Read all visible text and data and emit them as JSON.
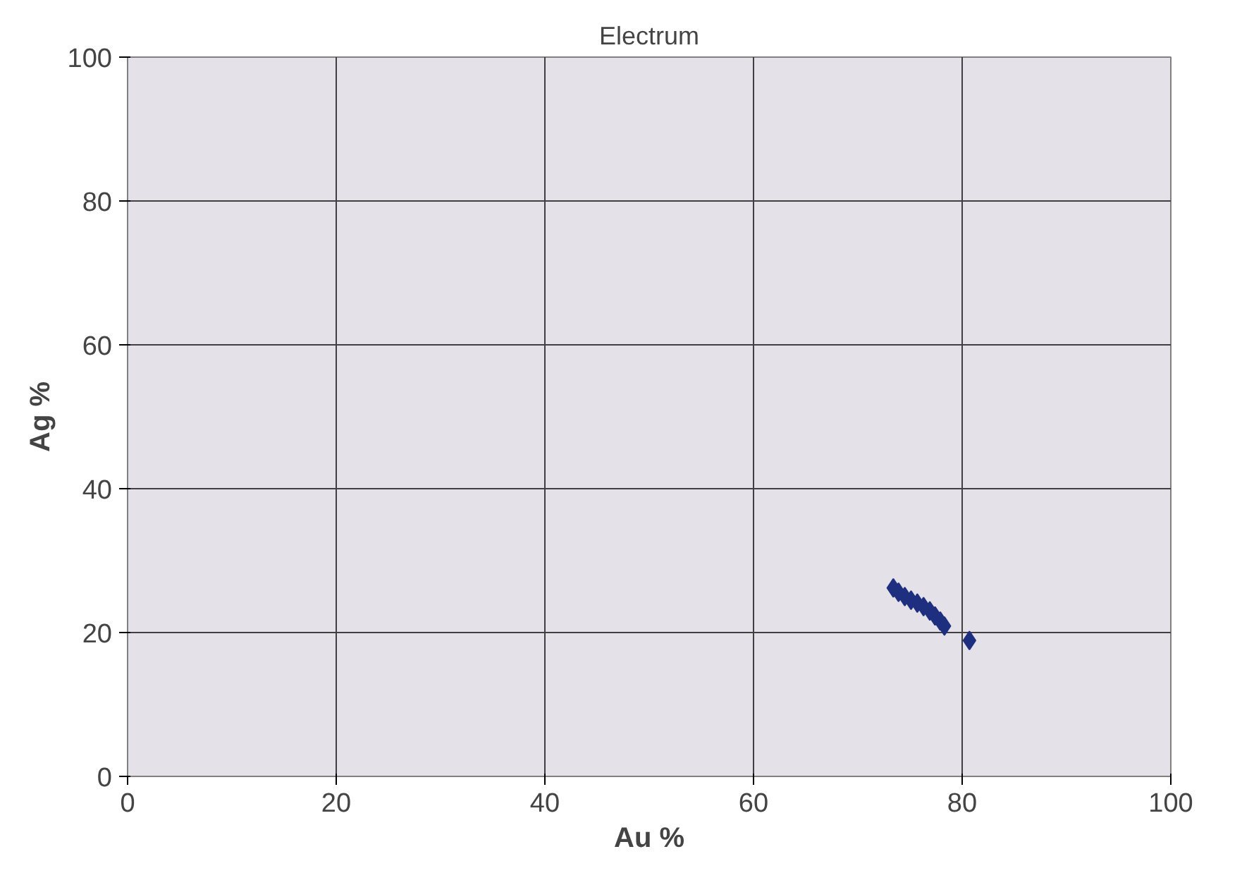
{
  "chart_data": {
    "type": "scatter",
    "title": "Electrum",
    "xlabel": "Au %",
    "ylabel": "Ag %",
    "x": [
      73.4,
      73.9,
      74.5,
      75.1,
      75.7,
      76.3,
      76.9,
      77.4,
      77.9,
      78.3,
      80.7
    ],
    "values": [
      26.2,
      25.6,
      25.0,
      24.5,
      24.1,
      23.6,
      23.0,
      22.3,
      21.6,
      20.9,
      18.9
    ],
    "color": "#1f2f80",
    "marker": "diamond",
    "xlim": [
      0,
      100
    ],
    "ylim": [
      0,
      100
    ],
    "xticks": [
      0,
      20,
      40,
      60,
      80,
      100
    ],
    "yticks": [
      0,
      20,
      40,
      60,
      80,
      100
    ],
    "grid": true
  }
}
